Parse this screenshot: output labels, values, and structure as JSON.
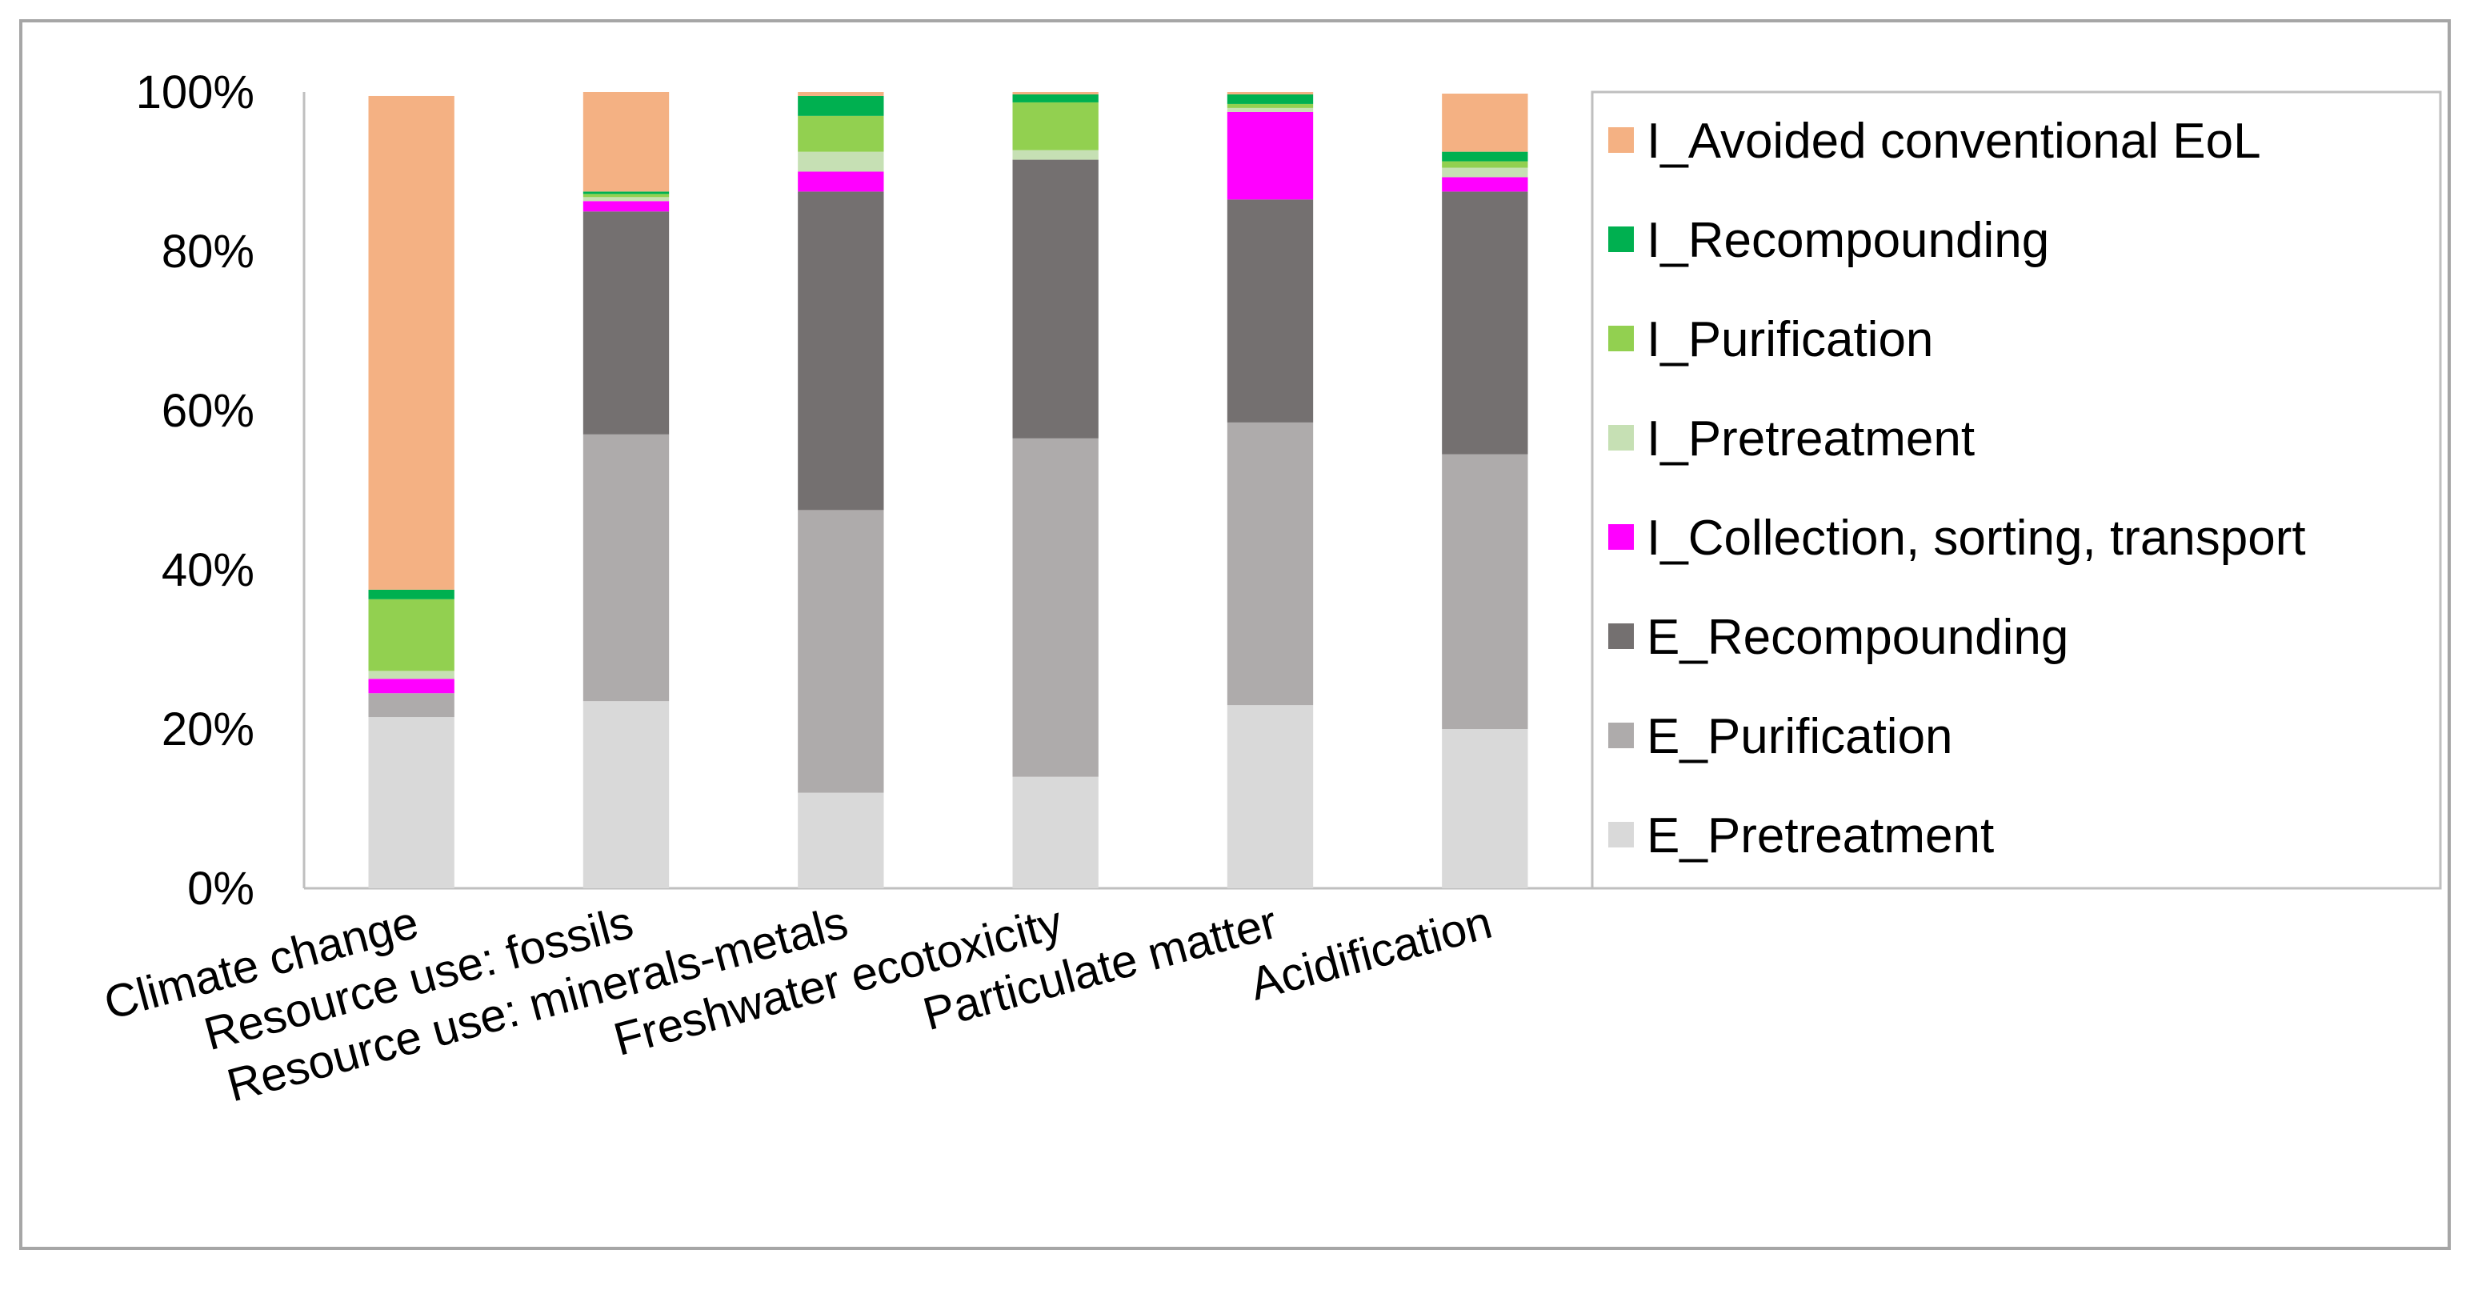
{
  "chart_data": {
    "type": "bar",
    "stacked": true,
    "normalized": true,
    "title": "",
    "xlabel": "",
    "ylabel": "",
    "ylim": [
      0,
      100
    ],
    "yticks": [
      0,
      20,
      40,
      60,
      80,
      100
    ],
    "ytick_labels": [
      "0%",
      "20%",
      "40%",
      "60%",
      "80%",
      "100%"
    ],
    "grid": false,
    "legend_position": "right",
    "categories": [
      "Climate change",
      "Resource use: fossils",
      "Resource use: minerals-metals",
      "Freshwater ecotoxicity",
      "Particulate matter",
      "Acidification"
    ],
    "series": [
      {
        "name": "E_Pretreatment",
        "color": "#D9D9D9",
        "values": [
          21.5,
          23.5,
          12,
          14,
          23,
          20
        ]
      },
      {
        "name": "E_Purification",
        "color": "#AEABAB",
        "values": [
          3,
          33.5,
          35.5,
          42.5,
          35.5,
          34.5
        ]
      },
      {
        "name": "E_Recompounding",
        "color": "#747070",
        "values": [
          0,
          28,
          40,
          35,
          28,
          33
        ]
      },
      {
        "name": "I_Collection, sorting, transport",
        "color": "#FF00FF",
        "values": [
          1.8,
          1.3,
          2.5,
          0,
          11,
          1.8
        ]
      },
      {
        "name": "I_Pretreatment",
        "color": "#C6E0B4",
        "values": [
          1,
          0.5,
          2.5,
          1.2,
          0.5,
          1.2
        ]
      },
      {
        "name": "I_Purification",
        "color": "#92D050",
        "values": [
          9,
          0.4,
          4.5,
          6,
          0.5,
          0.8
        ]
      },
      {
        "name": "I_Recompounding",
        "color": "#00B050",
        "values": [
          1.2,
          0.3,
          2.5,
          1,
          1.2,
          1.2
        ]
      },
      {
        "name": "I_Avoided conventional EoL",
        "color": "#F4B183",
        "values": [
          62,
          12.5,
          0.5,
          0.3,
          0.3,
          7.3
        ]
      }
    ]
  },
  "legend_order": [
    "I_Avoided conventional EoL",
    "I_Recompounding",
    "I_Purification",
    "I_Pretreatment",
    "I_Collection, sorting, transport",
    "E_Recompounding",
    "E_Purification",
    "E_Pretreatment"
  ],
  "colors": {
    "axis": "#BFBFBF",
    "frame": "#A6A6A6",
    "text": "#000000"
  }
}
